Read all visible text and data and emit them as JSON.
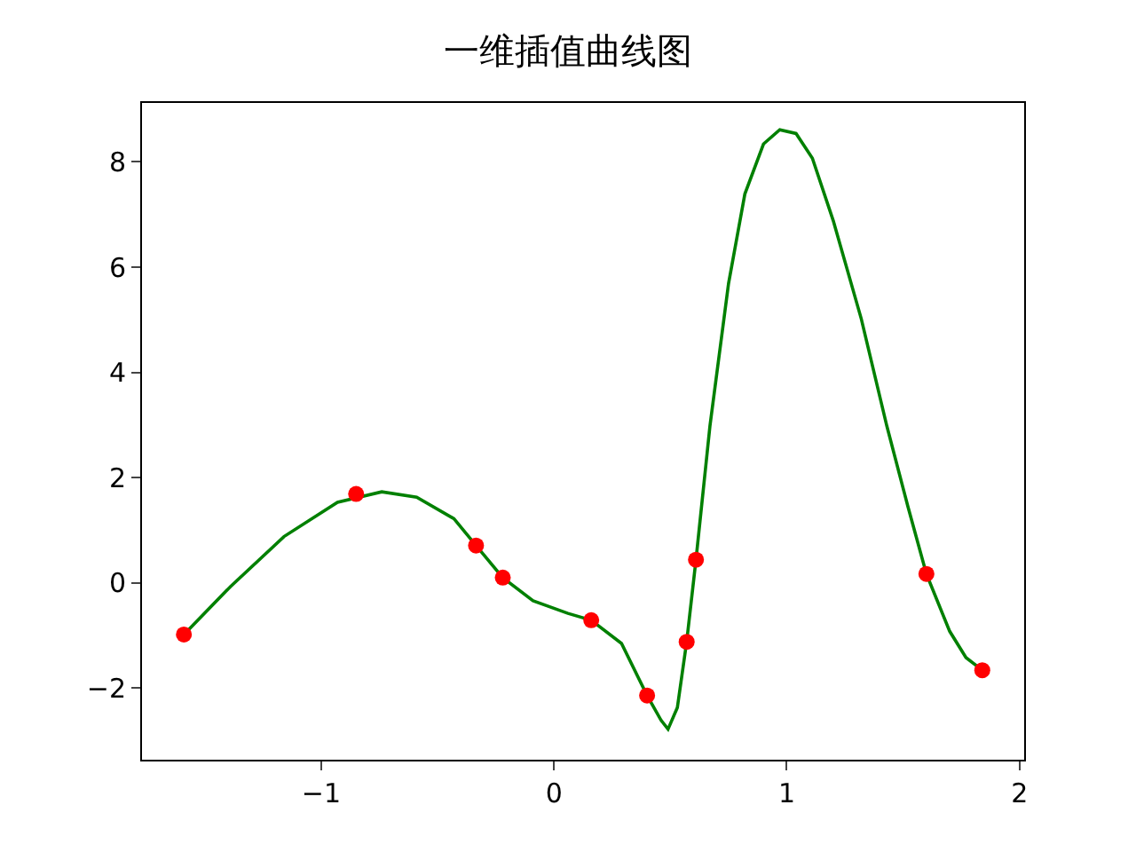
{
  "chart_data": {
    "type": "line",
    "title": "一维插值曲线图",
    "xlim": [
      -1.77,
      2.02
    ],
    "xticks": [
      {
        "value": -1,
        "label": "−1"
      },
      0,
      1,
      2
    ],
    "ylim": [
      -3.36,
      9.12
    ],
    "yticks": [
      {
        "value": -2,
        "label": "−2"
      },
      0,
      2,
      4,
      6,
      8
    ],
    "legend": false,
    "series": [
      {
        "color": "#008000",
        "marker": "none",
        "line_style": "solid",
        "x": [
          -1.59,
          -1.39,
          -1.16,
          -0.93,
          -0.74,
          -0.59,
          -0.43,
          -0.335,
          -0.22,
          -0.09,
          0.06,
          0.16,
          0.29,
          0.4,
          0.46,
          0.49,
          0.53,
          0.57,
          0.61,
          0.67,
          0.75,
          0.82,
          0.9,
          0.97,
          1.04,
          1.11,
          1.2,
          1.32,
          1.43,
          1.52,
          1.6,
          1.7,
          1.77,
          1.84
        ],
        "values": [
          -0.98,
          -0.07,
          0.88,
          1.53,
          1.73,
          1.63,
          1.22,
          0.71,
          0.1,
          -0.34,
          -0.58,
          -0.71,
          -1.15,
          -2.14,
          -2.61,
          -2.78,
          -2.37,
          -1.12,
          0.44,
          2.98,
          5.69,
          7.39,
          8.34,
          8.61,
          8.54,
          8.07,
          6.88,
          5.02,
          2.98,
          1.46,
          0.17,
          -0.92,
          -1.42,
          -1.66
        ]
      },
      {
        "type": "scatter",
        "color": "#ff0000",
        "marker": "circle",
        "x": [
          -1.59,
          -0.85,
          -0.335,
          -0.22,
          0.16,
          0.4,
          0.57,
          0.61,
          1.6,
          1.84
        ],
        "values": [
          -0.98,
          1.69,
          0.71,
          0.1,
          -0.71,
          -2.14,
          -1.12,
          0.44,
          0.17,
          -1.66
        ]
      }
    ]
  }
}
